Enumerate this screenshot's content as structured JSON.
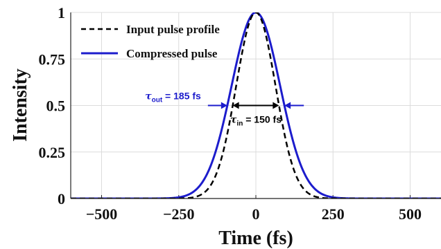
{
  "chart_data": {
    "type": "line",
    "xlabel": "Time (fs)",
    "ylabel": "Intensity",
    "xlim": [
      -600,
      600
    ],
    "ylim": [
      0,
      1
    ],
    "xticks": [
      -500,
      -250,
      0,
      250,
      500
    ],
    "xtick_labels": [
      "−500",
      "−250",
      "0",
      "250",
      "500"
    ],
    "yticks": [
      0,
      0.25,
      0.5,
      0.75,
      1
    ],
    "ytick_labels": [
      "0",
      "0.25",
      "0.5",
      "0.75",
      "1"
    ],
    "grid": true,
    "legend_position": "top-left",
    "series": [
      {
        "name": "Input pulse profile",
        "style": "dashed",
        "color": "#000000",
        "fwhm_fs": 150,
        "x": [
          -600,
          -300,
          -250,
          -200,
          -175,
          -150,
          -125,
          -100,
          -75,
          -50,
          -25,
          0,
          25,
          50,
          75,
          100,
          125,
          150,
          175,
          200,
          250,
          300,
          600
        ],
        "y": [
          0,
          0,
          0,
          0.003,
          0.011,
          0.038,
          0.1,
          0.226,
          0.44,
          0.709,
          0.93,
          1.0,
          0.93,
          0.709,
          0.44,
          0.226,
          0.1,
          0.038,
          0.011,
          0.003,
          0,
          0,
          0
        ]
      },
      {
        "name": "Compressed pulse",
        "style": "solid",
        "color": "#1c1ccc",
        "fwhm_fs": 185,
        "x": [
          -600,
          -300,
          -250,
          -225,
          -200,
          -175,
          -150,
          -125,
          -100,
          -75,
          -50,
          -25,
          0,
          25,
          50,
          75,
          100,
          125,
          150,
          175,
          200,
          225,
          250,
          300,
          600
        ],
        "y": [
          0,
          0,
          0.001,
          0.004,
          0.014,
          0.04,
          0.1,
          0.21,
          0.38,
          0.59,
          0.79,
          0.93,
          1.0,
          0.93,
          0.79,
          0.59,
          0.38,
          0.21,
          0.1,
          0.04,
          0.014,
          0.004,
          0.001,
          0,
          0
        ]
      }
    ],
    "annotations": [
      {
        "id": "tau_out",
        "symbol": "τ",
        "subscript": "out",
        "text": " = 185 fs",
        "color": "#1c1ccc",
        "x_from": -92.5,
        "x_to": 92.5,
        "y": 0.5
      },
      {
        "id": "tau_in",
        "symbol": "τ",
        "subscript": "in",
        "text": " = 150 fs",
        "color": "#000000",
        "x_from": -75,
        "x_to": 75,
        "y": 0.5
      }
    ]
  }
}
